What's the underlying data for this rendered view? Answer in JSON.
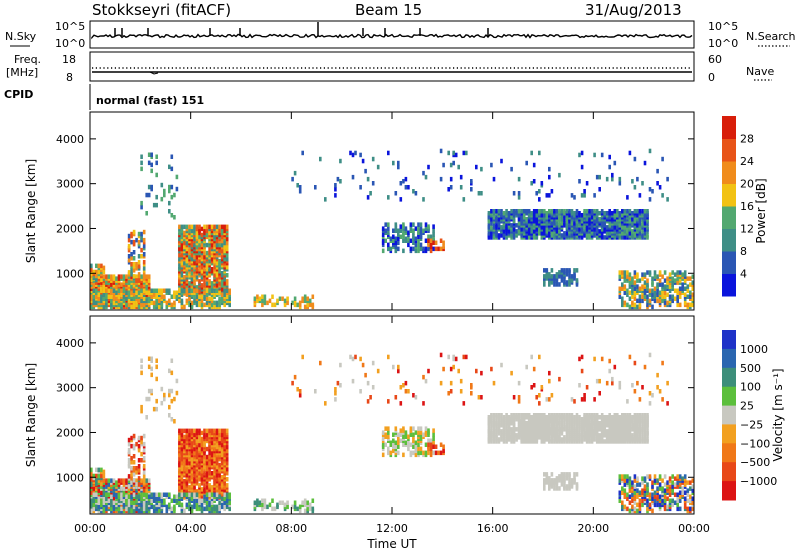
{
  "header": {
    "station": "Stokkseyri (fitACF)",
    "beam": "Beam 15",
    "date": "31/Aug/2013"
  },
  "top_panels": {
    "nsky_label": "N.Sky",
    "nsearch_label": "N.Search",
    "nsky_ticks": [
      "10^5",
      "10^0"
    ],
    "nsearch_ticks": [
      "10^5",
      "10^0"
    ],
    "freq_label_1": "Freq.",
    "freq_label_2": "[MHz]",
    "freq_ticks": [
      "18",
      "8"
    ],
    "nave_label": "Nave",
    "nave_ticks": [
      "60",
      "0"
    ],
    "cpid_label": "CPID",
    "cpid_text": "normal (fast) 151"
  },
  "colors": {
    "power": [
      "#0a14dc",
      "#2a56b4",
      "#3e8e86",
      "#52a870",
      "#f2c214",
      "#f08c1c",
      "#e85418",
      "#d81e0a"
    ],
    "velocity": [
      "#1e32c8",
      "#2a66b0",
      "#3c8e7a",
      "#5cbf3c",
      "#c8c8c0",
      "#f2a020",
      "#f07818",
      "#e84818",
      "#dc1414"
    ]
  },
  "chart_data": [
    {
      "type": "heatmap",
      "title": "",
      "xlabel": "Time UT",
      "ylabel": "Slant Range [km]",
      "x_ticks": [
        "00:00",
        "04:00",
        "08:00",
        "12:00",
        "16:00",
        "20:00",
        "00:00"
      ],
      "y_ticks": [
        "1000",
        "2000",
        "3000",
        "4000"
      ],
      "ylim": [
        180,
        4600
      ],
      "colorbar_label": "Power [dB]",
      "colorbar_ticks": [
        "4",
        "8",
        "12",
        "16",
        "20",
        "24",
        "28"
      ],
      "colorbar_range": [
        0,
        30
      ]
    },
    {
      "type": "heatmap",
      "title": "",
      "xlabel": "Time UT",
      "ylabel": "Slant Range [km]",
      "x_ticks": [
        "00:00",
        "04:00",
        "08:00",
        "12:00",
        "16:00",
        "20:00",
        "00:00"
      ],
      "y_ticks": [
        "1000",
        "2000",
        "3000",
        "4000"
      ],
      "ylim": [
        180,
        4600
      ],
      "colorbar_label": "Velocity [m s⁻¹]",
      "colorbar_ticks": [
        "1000",
        "500",
        "100",
        "25",
        "−25",
        "−100",
        "−500",
        "−1000"
      ],
      "colorbar_range": [
        -1000,
        1000
      ]
    }
  ]
}
